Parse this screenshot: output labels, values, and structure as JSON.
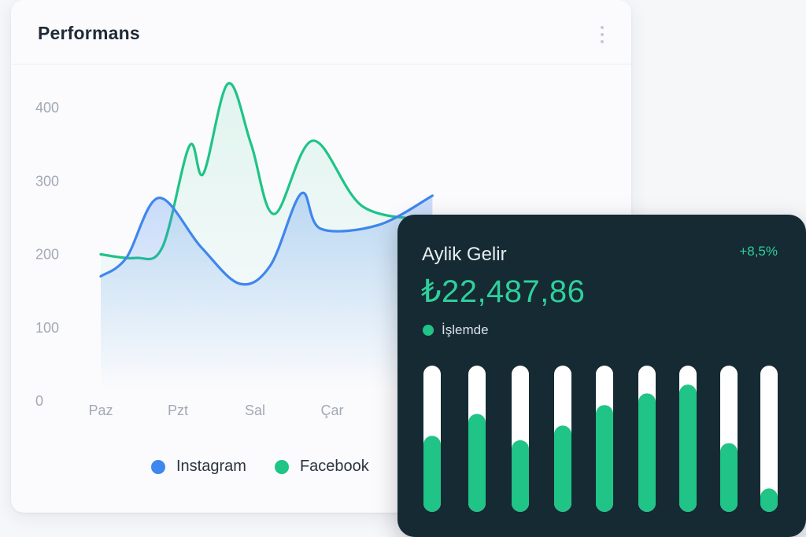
{
  "performance_card": {
    "title": "Performans",
    "menu_icon": "kebab-vertical-icon"
  },
  "revenue_card": {
    "title": "Aylik Gelir",
    "change": "+8,5%",
    "amount": "₺22,487,86",
    "status": "İşlemde",
    "bars": [
      0.52,
      0.67,
      0.49,
      0.59,
      0.73,
      0.81,
      0.87,
      0.47,
      0.16
    ],
    "colors": {
      "background": "#162a33",
      "bar_fill": "#1fc486",
      "bar_track": "#ffffff"
    }
  },
  "chart_data": {
    "type": "area",
    "title": "",
    "xlabel": "",
    "ylabel": "",
    "ylim": [
      0,
      400
    ],
    "yticks": [
      "0",
      "100",
      "200",
      "300",
      "400"
    ],
    "categories": [
      "Paz",
      "Pzt",
      "Sal",
      "Çar"
    ],
    "legend_position": "bottom",
    "grid": false,
    "series": [
      {
        "name": "Instagram",
        "color": "#3f86ee",
        "points": [
          [
            0,
            155
          ],
          [
            0.33,
            180
          ],
          [
            0.75,
            262
          ],
          [
            1.3,
            195
          ],
          [
            1.8,
            145
          ],
          [
            2.2,
            170
          ],
          [
            2.6,
            268
          ],
          [
            2.85,
            220
          ],
          [
            3.6,
            225
          ],
          [
            4.3,
            265
          ]
        ]
      },
      {
        "name": "Facebook",
        "color": "#1fc486",
        "points": [
          [
            0,
            185
          ],
          [
            0.45,
            180
          ],
          [
            0.8,
            195
          ],
          [
            1.15,
            333
          ],
          [
            1.33,
            295
          ],
          [
            1.65,
            418
          ],
          [
            1.95,
            335
          ],
          [
            2.25,
            240
          ],
          [
            2.75,
            340
          ],
          [
            3.4,
            250
          ],
          [
            4.3,
            232
          ]
        ]
      }
    ]
  }
}
